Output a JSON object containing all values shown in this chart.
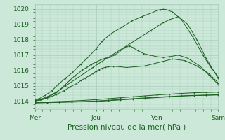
{
  "title": "",
  "xlabel": "Pression niveau de la mer( hPa )",
  "ylabel": "",
  "xlim": [
    0,
    3
  ],
  "ylim": [
    1013.5,
    1020.3
  ],
  "yticks": [
    1014,
    1015,
    1016,
    1017,
    1018,
    1019,
    1020
  ],
  "xtick_labels": [
    "Mer",
    "Jeu",
    "Ven",
    "Sam"
  ],
  "xtick_positions": [
    0,
    1,
    2,
    3
  ],
  "bg_color": "#cce8d8",
  "grid_color": "#a8ccbc",
  "line_color": "#1a6020",
  "lines": [
    {
      "x": [
        0.0,
        0.08,
        0.17,
        0.28,
        0.38,
        0.5,
        0.62,
        0.75,
        0.88,
        1.0,
        1.1,
        1.25,
        1.42,
        1.58,
        1.75,
        1.92,
        2.0,
        2.05,
        2.1,
        2.15,
        2.25,
        2.4,
        2.58,
        2.75,
        2.88,
        3.0
      ],
      "y": [
        1014.1,
        1014.2,
        1014.4,
        1014.7,
        1015.1,
        1015.5,
        1015.9,
        1016.4,
        1016.9,
        1017.4,
        1017.9,
        1018.4,
        1018.8,
        1019.2,
        1019.5,
        1019.75,
        1019.9,
        1019.95,
        1019.97,
        1019.95,
        1019.8,
        1019.3,
        1018.2,
        1017.0,
        1016.2,
        1015.6
      ]
    },
    {
      "x": [
        0.0,
        0.1,
        0.2,
        0.35,
        0.5,
        0.65,
        0.8,
        0.95,
        1.1,
        1.3,
        1.5,
        1.7,
        1.9,
        2.0,
        2.05,
        2.1,
        2.2,
        2.35,
        2.5,
        2.65,
        2.8,
        3.0
      ],
      "y": [
        1014.05,
        1014.15,
        1014.3,
        1014.6,
        1015.0,
        1015.4,
        1015.8,
        1016.2,
        1016.6,
        1017.1,
        1017.6,
        1018.1,
        1018.6,
        1018.85,
        1019.0,
        1019.1,
        1019.3,
        1019.5,
        1019.0,
        1018.0,
        1016.8,
        1015.5
      ]
    },
    {
      "x": [
        0.0,
        0.1,
        0.2,
        0.32,
        0.42,
        0.5,
        0.58,
        0.65,
        0.72,
        0.78,
        0.85,
        0.92,
        1.0,
        1.08,
        1.15,
        1.22,
        1.3,
        1.38,
        1.45,
        1.5,
        1.55,
        1.6,
        1.68,
        1.78,
        1.88,
        2.0,
        2.1,
        2.2,
        2.35,
        2.5,
        2.7,
        2.85,
        3.0
      ],
      "y": [
        1014.05,
        1014.1,
        1014.25,
        1014.5,
        1014.8,
        1015.1,
        1015.4,
        1015.65,
        1015.85,
        1016.05,
        1016.2,
        1016.4,
        1016.55,
        1016.7,
        1016.8,
        1016.85,
        1017.0,
        1017.2,
        1017.45,
        1017.55,
        1017.6,
        1017.5,
        1017.3,
        1017.1,
        1017.0,
        1016.9,
        1016.85,
        1016.9,
        1017.0,
        1016.8,
        1016.3,
        1015.7,
        1015.1
      ]
    },
    {
      "x": [
        0.0,
        0.1,
        0.2,
        0.35,
        0.48,
        0.58,
        0.68,
        0.75,
        0.82,
        0.88,
        0.95,
        1.0,
        1.05,
        1.1,
        1.15,
        1.2,
        1.28,
        1.38,
        1.5,
        1.65,
        1.8,
        1.95,
        2.1,
        2.25,
        2.45,
        2.65,
        2.85,
        3.0
      ],
      "y": [
        1014.05,
        1014.1,
        1014.2,
        1014.45,
        1014.7,
        1014.95,
        1015.15,
        1015.35,
        1015.5,
        1015.65,
        1015.8,
        1015.95,
        1016.05,
        1016.15,
        1016.2,
        1016.25,
        1016.28,
        1016.25,
        1016.2,
        1016.25,
        1016.3,
        1016.45,
        1016.6,
        1016.75,
        1016.65,
        1016.3,
        1015.8,
        1015.2
      ]
    },
    {
      "x": [
        0.0,
        0.2,
        0.4,
        0.6,
        0.8,
        1.0,
        1.2,
        1.4,
        1.6,
        1.8,
        2.0,
        2.2,
        2.4,
        2.6,
        2.8,
        3.0
      ],
      "y": [
        1013.9,
        1013.92,
        1013.94,
        1013.96,
        1013.98,
        1014.0,
        1014.05,
        1014.1,
        1014.15,
        1014.2,
        1014.25,
        1014.3,
        1014.35,
        1014.38,
        1014.4,
        1014.42
      ]
    },
    {
      "x": [
        0.0,
        0.2,
        0.4,
        0.6,
        0.8,
        1.0,
        1.2,
        1.4,
        1.6,
        1.8,
        2.0,
        2.2,
        2.4,
        2.6,
        2.8,
        3.0
      ],
      "y": [
        1013.92,
        1013.94,
        1013.96,
        1013.98,
        1014.0,
        1014.03,
        1014.08,
        1014.13,
        1014.18,
        1014.23,
        1014.28,
        1014.32,
        1014.36,
        1014.39,
        1014.41,
        1014.43
      ]
    },
    {
      "x": [
        0.0,
        0.2,
        0.4,
        0.6,
        0.8,
        1.0,
        1.2,
        1.4,
        1.6,
        1.8,
        2.0,
        2.2,
        2.4,
        2.6,
        2.8,
        3.0
      ],
      "y": [
        1013.95,
        1013.97,
        1014.0,
        1014.03,
        1014.07,
        1014.12,
        1014.18,
        1014.24,
        1014.3,
        1014.36,
        1014.42,
        1014.47,
        1014.52,
        1014.56,
        1014.58,
        1014.6
      ]
    }
  ]
}
